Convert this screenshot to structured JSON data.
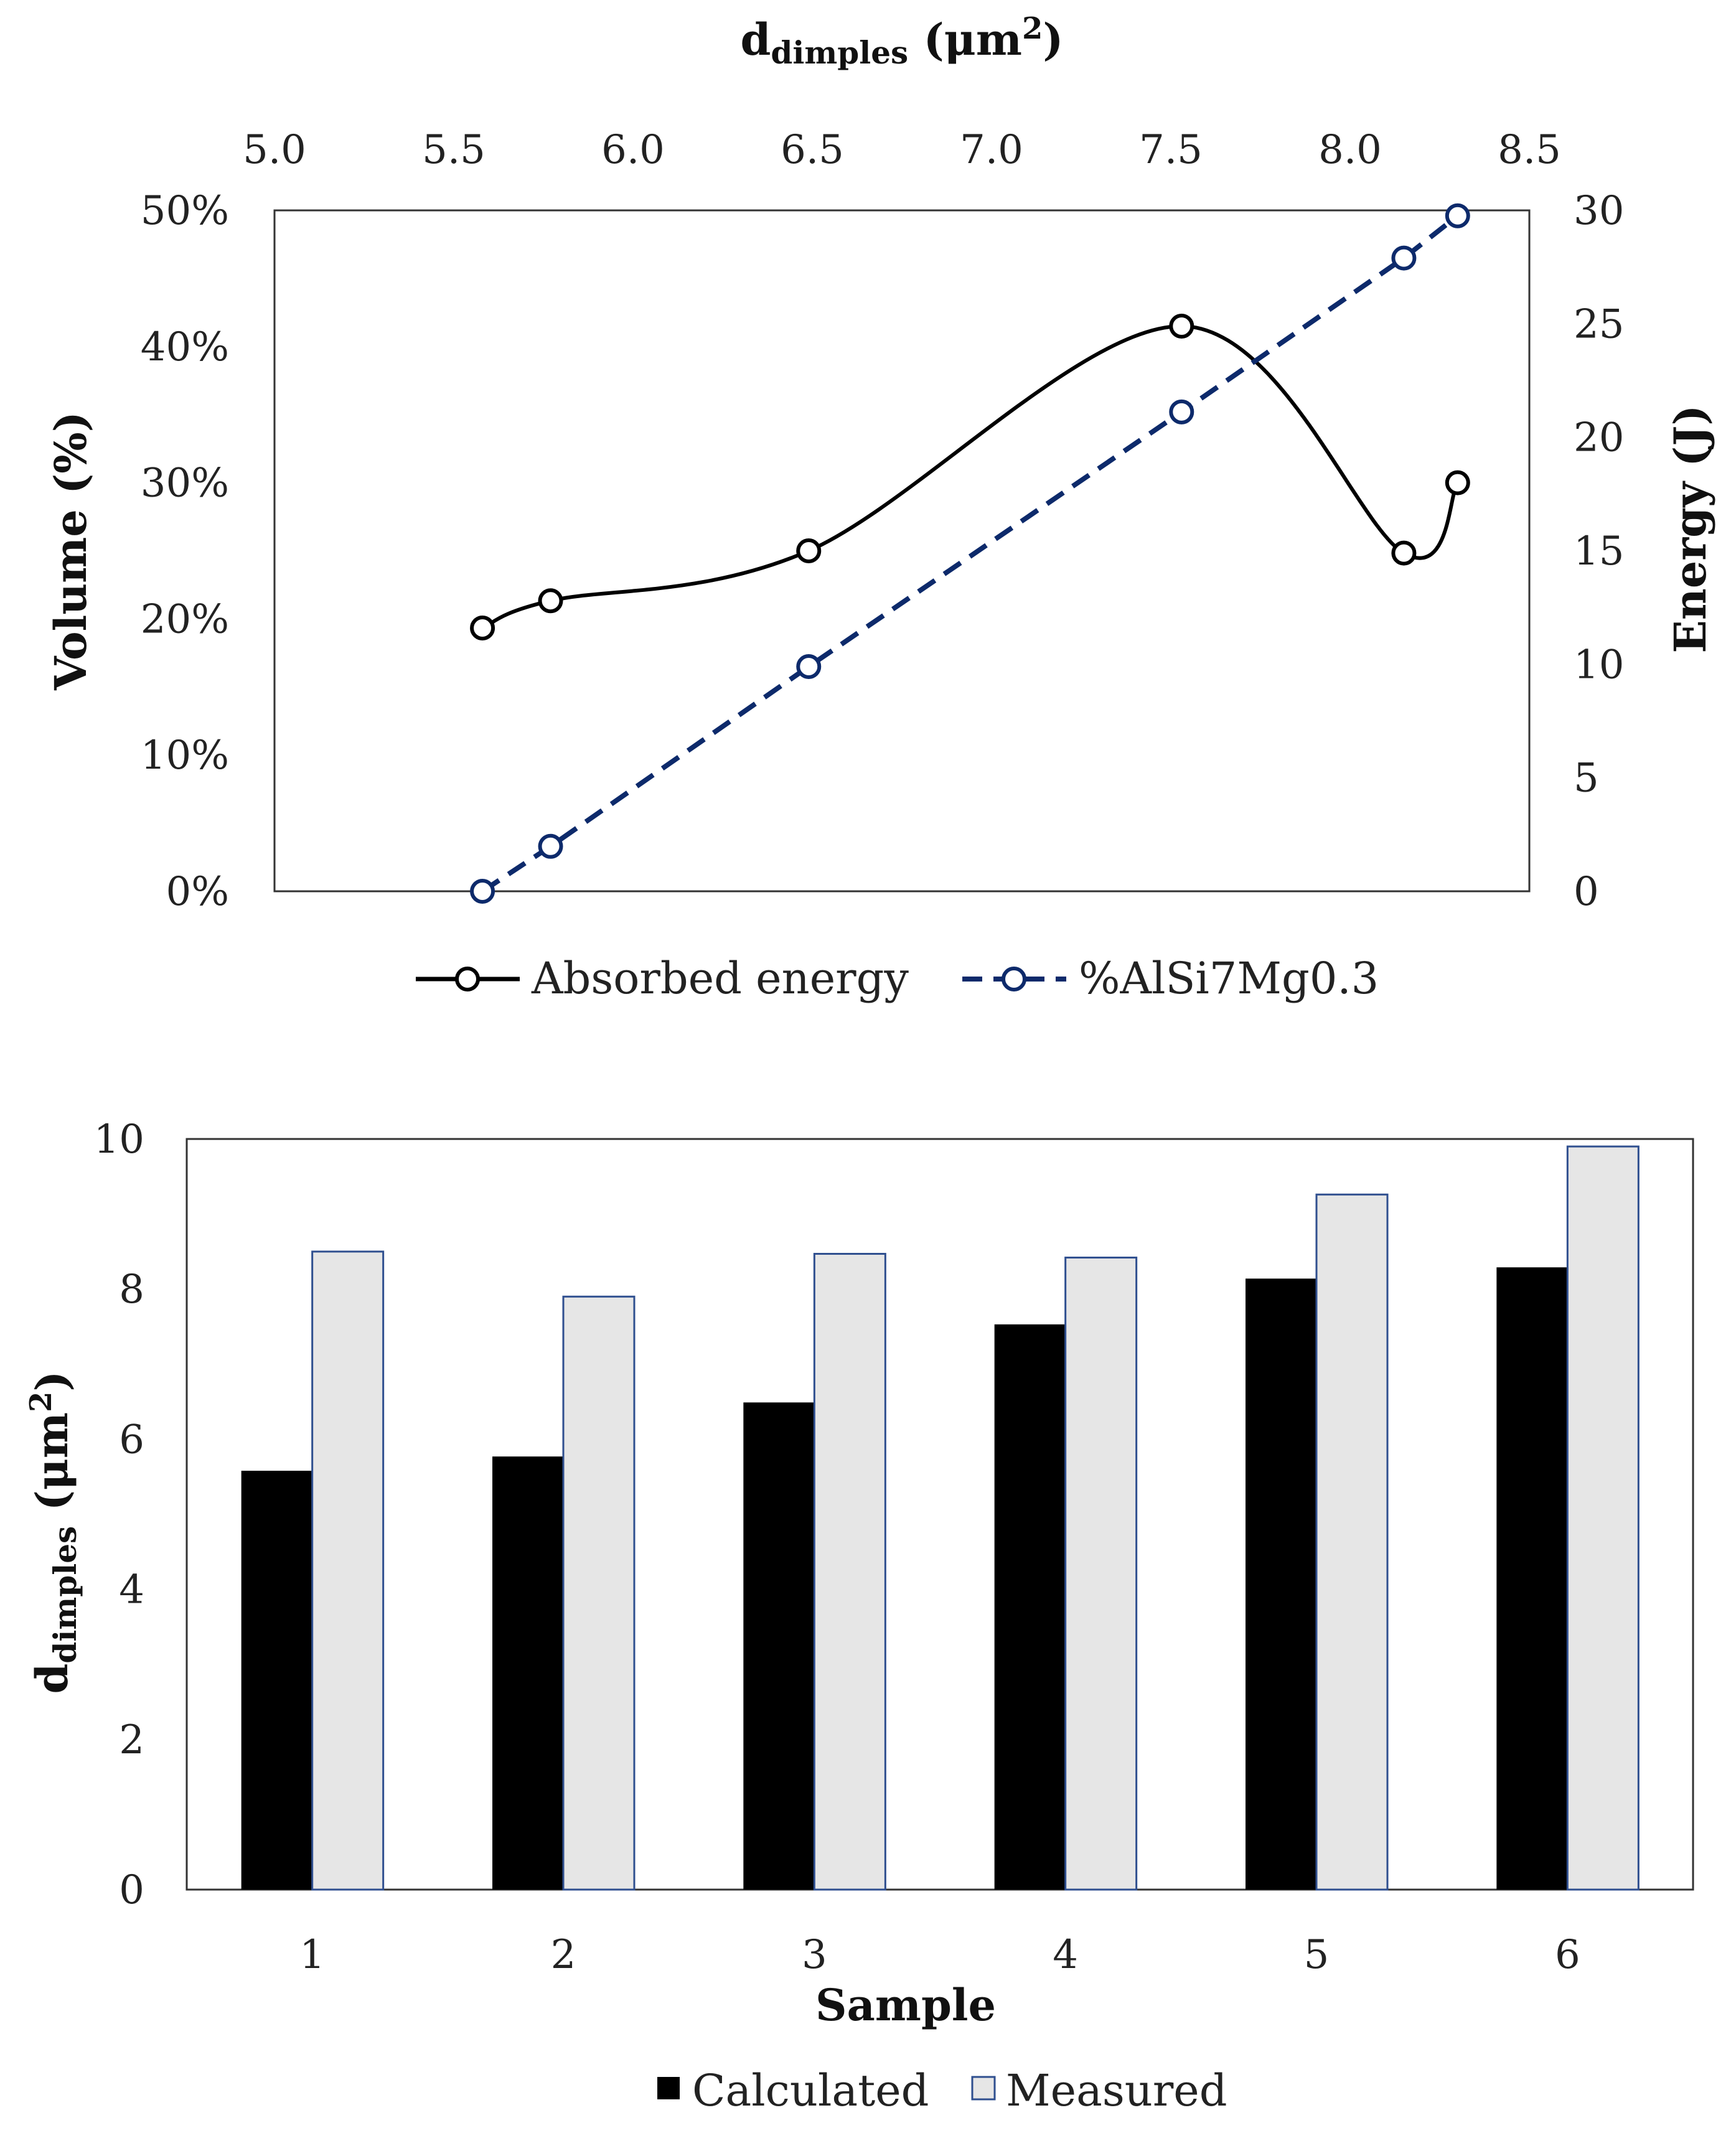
{
  "chart_data": [
    {
      "type": "line",
      "x_axis_top": {
        "label_main": "d",
        "label_sub": "dimples",
        "label_unit": " (μm",
        "label_sup": "2",
        "label_close": ")",
        "range": [
          5.0,
          8.5
        ],
        "ticks": [
          "5.0",
          "5.5",
          "6.0",
          "6.5",
          "7.0",
          "7.5",
          "8.0",
          "8.5"
        ]
      },
      "y_axis_left": {
        "label": "Volume (%)",
        "range": [
          0,
          50
        ],
        "ticks": [
          "0%",
          "10%",
          "20%",
          "30%",
          "40%",
          "50%"
        ]
      },
      "y_axis_right": {
        "label": "Energy (J)",
        "range": [
          0,
          30
        ],
        "ticks": [
          "0",
          "5",
          "10",
          "15",
          "20",
          "25",
          "30"
        ]
      },
      "series": [
        {
          "name": "Absorbed energy",
          "axis": "right",
          "style": "solid",
          "color": "#000000",
          "x": [
            5.58,
            5.77,
            6.49,
            7.53,
            8.15,
            8.3
          ],
          "y": [
            11.6,
            12.8,
            15.0,
            24.9,
            14.9,
            18.0
          ]
        },
        {
          "name": "%AlSi7Mg0.3",
          "axis": "left",
          "style": "dashed",
          "color": "#0d2a6b",
          "x": [
            5.58,
            5.77,
            6.49,
            7.53,
            8.15,
            8.3
          ],
          "y": [
            0,
            3.3,
            16.5,
            35.2,
            46.5,
            49.6
          ]
        }
      ]
    },
    {
      "type": "bar",
      "categories": [
        "1",
        "2",
        "3",
        "4",
        "5",
        "6"
      ],
      "xlabel": "Sample",
      "ylabel_main": "d",
      "ylabel_sub": "dimples",
      "ylabel_unit": " (μm",
      "ylabel_sup": "2",
      "ylabel_close": ")",
      "ylim": [
        0,
        10
      ],
      "yticks": [
        "0",
        "2",
        "4",
        "6",
        "8",
        "10"
      ],
      "series": [
        {
          "name": "Calculated",
          "color": "#000000",
          "values": [
            5.58,
            5.77,
            6.49,
            7.53,
            8.14,
            8.29
          ]
        },
        {
          "name": "Measured",
          "color": "#e6e6e6",
          "stroke": "#2f4f8f",
          "values": [
            8.5,
            7.9,
            8.47,
            8.42,
            9.26,
            9.9
          ]
        }
      ]
    }
  ]
}
